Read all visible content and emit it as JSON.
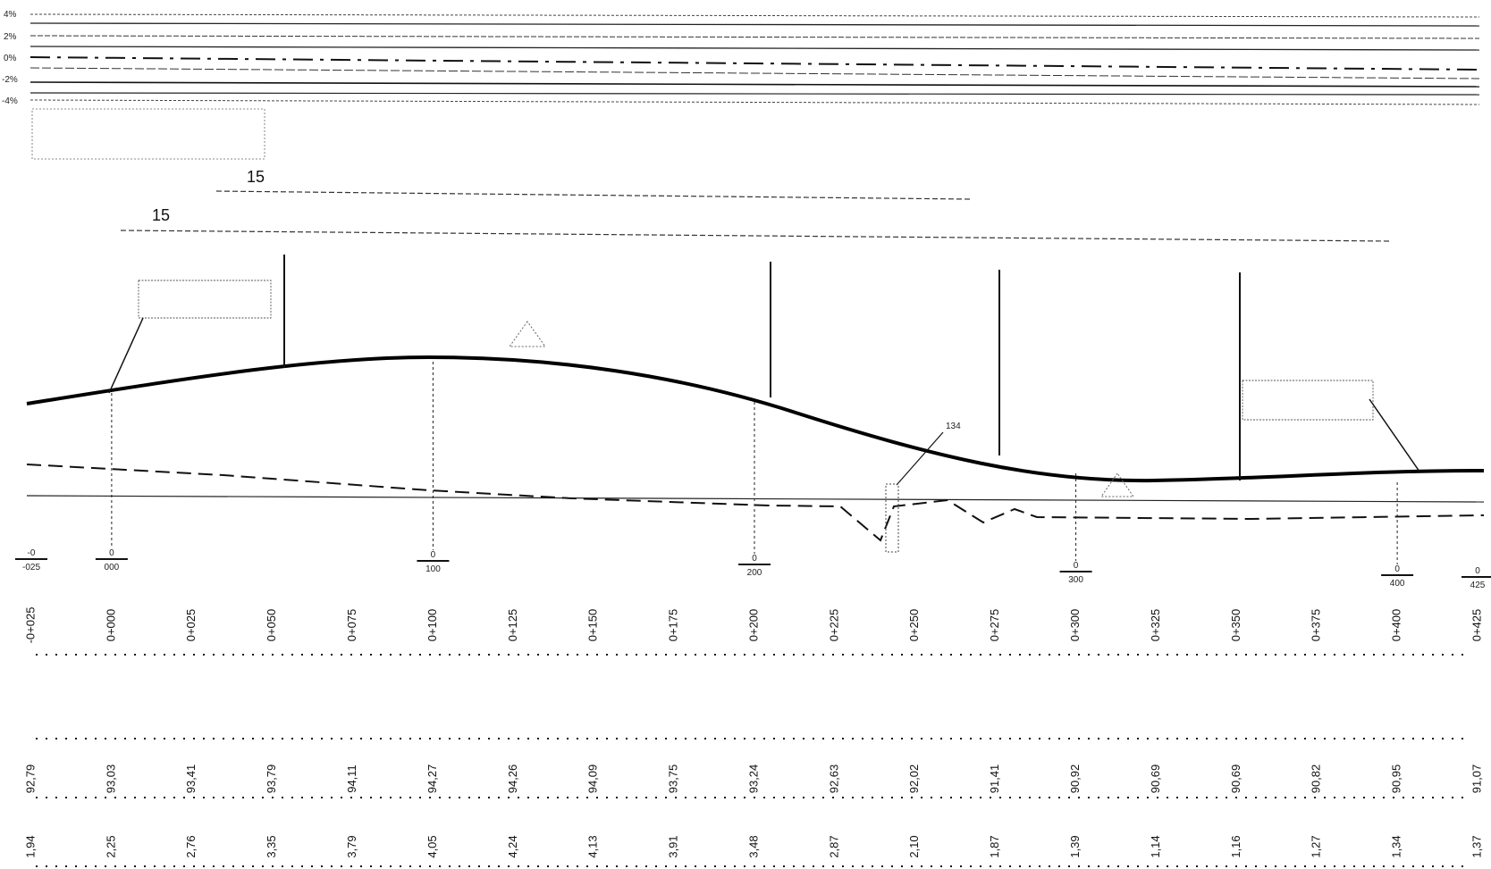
{
  "slope_scale": [
    "4%",
    "2%",
    "0%",
    "-2%",
    "-4%"
  ],
  "dimension_labels": [
    "15",
    "15"
  ],
  "point_label": "134",
  "milestones": [
    {
      "station": "-0+025",
      "top": "-0",
      "bottom": "-025"
    },
    {
      "station": "0+000",
      "top": "0",
      "bottom": "000"
    },
    {
      "station": "0+100",
      "top": "0",
      "bottom": "100"
    },
    {
      "station": "0+200",
      "top": "0",
      "bottom": "200"
    },
    {
      "station": "0+300",
      "top": "0",
      "bottom": "300"
    },
    {
      "station": "0+400",
      "top": "0",
      "bottom": "400"
    },
    {
      "station": "0+425",
      "top": "0",
      "bottom": "425"
    }
  ],
  "stations": [
    "-0+025",
    "0+000",
    "0+025",
    "0+050",
    "0+075",
    "0+100",
    "0+125",
    "0+150",
    "0+175",
    "0+200",
    "0+225",
    "0+250",
    "0+275",
    "0+300",
    "0+325",
    "0+350",
    "0+375",
    "0+400",
    "0+425"
  ],
  "elevations": [
    "92,79",
    "93,03",
    "93,41",
    "93,79",
    "94,11",
    "94,27",
    "94,26",
    "94,09",
    "93,75",
    "93,24",
    "92,63",
    "92,02",
    "91,41",
    "90,92",
    "90,69",
    "90,69",
    "90,82",
    "90,95",
    "91,07"
  ],
  "depths": [
    "1,94",
    "2,25",
    "2,76",
    "3,35",
    "3,79",
    "4,05",
    "4,24",
    "4,13",
    "3,91",
    "3,48",
    "2,87",
    "2,10",
    "1,87",
    "1,39",
    "1,14",
    "1,16",
    "1,27",
    "1,34",
    "1,37"
  ],
  "colors": {
    "ink": "#111111",
    "faint": "#555555"
  }
}
